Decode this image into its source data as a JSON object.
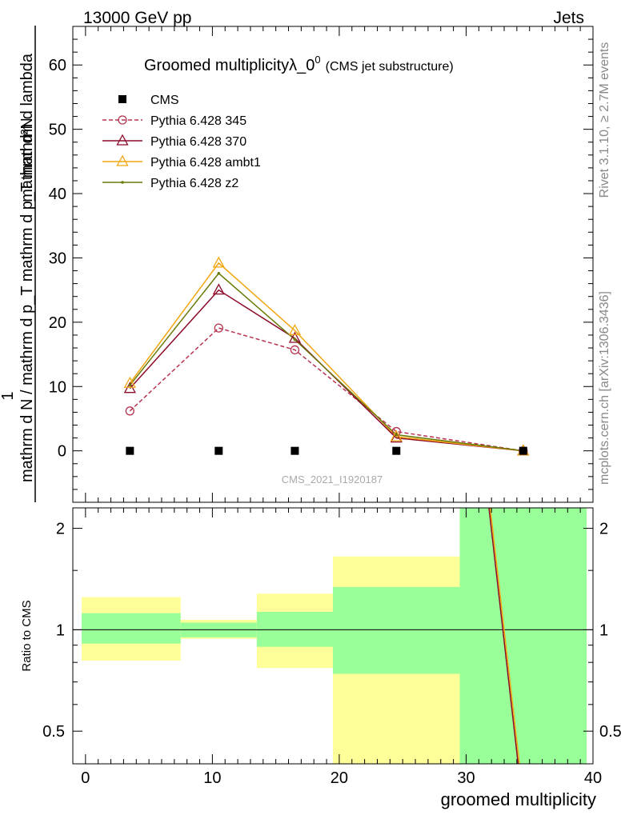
{
  "header": {
    "energy": "13000 GeV pp",
    "category": "Jets"
  },
  "side": {
    "rivet": "Rivet 3.1.10, ≥ 2.7M events",
    "mcplots": "mcplots.cern.ch [arXiv:1306.3436]"
  },
  "chart_data": [
    {
      "type": "line",
      "title_main": "Groomed multiplicityλ_0",
      "title_sup": "0",
      "title_sub": "(CMS jet substructure)",
      "ylabel_num": "mathrm d²N",
      "ylabel_den": "mathrm d N / mathrm d p_T mathrm d p_T mathrm d lambda",
      "ylabel_one": "1",
      "ylim": [
        -8,
        66
      ],
      "xlim": [
        -1,
        40
      ],
      "yticks": [
        0,
        10,
        20,
        30,
        40,
        50,
        60
      ],
      "watermark": "CMS_2021_I1920187",
      "x": [
        3.5,
        10.5,
        16.5,
        24.5,
        34.5
      ],
      "data": {
        "name": "CMS",
        "values": [
          0,
          0,
          0,
          0,
          0
        ],
        "color": "#000000"
      },
      "series": [
        {
          "name": "Pythia 6.428 345",
          "values": [
            6.2,
            19.1,
            15.7,
            3.0,
            0.0
          ],
          "color": "#b6344f",
          "marker": "circle",
          "dashed": true
        },
        {
          "name": "Pythia 6.428 370",
          "values": [
            9.7,
            25.0,
            17.5,
            2.0,
            0.0
          ],
          "color": "#8b0a28",
          "marker": "triangle",
          "dashed": false
        },
        {
          "name": "Pythia 6.428 ambt1",
          "values": [
            10.5,
            29.2,
            18.7,
            2.2,
            0.0
          ],
          "color": "#f2a612",
          "marker": "triangle",
          "dashed": false
        },
        {
          "name": "Pythia 6.428 z2",
          "values": [
            10.2,
            27.6,
            17.3,
            2.5,
            0.0
          ],
          "color": "#6b7a08",
          "marker": "dot",
          "dashed": false
        }
      ]
    },
    {
      "type": "ratio",
      "ylabel": "Ratio to CMS",
      "xlabel": "groomed multiplicity",
      "scale": "log",
      "ylim": [
        0.4,
        2.3
      ],
      "yticks": [
        0.5,
        1,
        2
      ],
      "xticks": [
        0,
        10,
        20,
        30,
        40
      ],
      "bands": [
        {
          "xlo": -1,
          "xhi": 7.5,
          "stat_lo": 0.91,
          "stat_hi": 1.12,
          "tot_lo": 0.81,
          "tot_hi": 1.25
        },
        {
          "xlo": 7.5,
          "xhi": 13.5,
          "stat_lo": 0.95,
          "stat_hi": 1.05,
          "tot_lo": 0.94,
          "tot_hi": 1.07
        },
        {
          "xlo": 13.5,
          "xhi": 19.5,
          "stat_lo": 0.89,
          "stat_hi": 1.13,
          "tot_lo": 0.77,
          "tot_hi": 1.28
        },
        {
          "xlo": 19.5,
          "xhi": 29.5,
          "stat_lo": 0.74,
          "stat_hi": 1.34,
          "tot_lo": 0.4,
          "tot_hi": 1.65
        },
        {
          "xlo": 29.5,
          "xhi": 39.5,
          "stat_lo": 0.4,
          "stat_hi": 2.3,
          "tot_lo": 0.4,
          "tot_hi": 2.3
        }
      ],
      "ratio_lines": [
        {
          "name": "Pythia 6.428 370",
          "color": "#8b0a28",
          "x": [
            31.8,
            34.1
          ],
          "y": [
            2.3,
            0.4
          ]
        },
        {
          "name": "Pythia 6.428 ambt1",
          "color": "#f2a612",
          "x": [
            31.9,
            34.2
          ],
          "y": [
            2.3,
            0.4
          ]
        }
      ]
    }
  ]
}
